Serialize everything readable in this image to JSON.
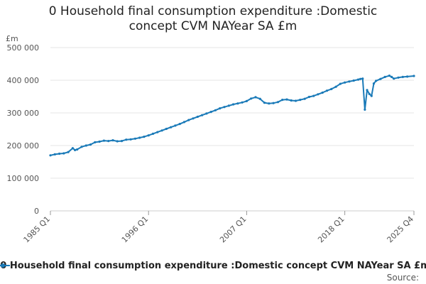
{
  "chart_data": {
    "type": "line",
    "title_line1": "0 Household final consumption expenditure :Domestic",
    "title_line2": "concept CVM NAYear SA £m",
    "ylabel": "£m",
    "ylim": [
      0,
      500000
    ],
    "y_ticks": [
      {
        "value": 0,
        "label": "0"
      },
      {
        "value": 100000,
        "label": "100 000"
      },
      {
        "value": 200000,
        "label": "200 000"
      },
      {
        "value": 300000,
        "label": "300 000"
      },
      {
        "value": 400000,
        "label": "400 000"
      },
      {
        "value": 500000,
        "label": "500 000"
      }
    ],
    "x_range": [
      1985.0,
      2025.75
    ],
    "x_ticks": [
      {
        "value": 1985.0,
        "label": "1985 Q1"
      },
      {
        "value": 1996.0,
        "label": "1996 Q1"
      },
      {
        "value": 2007.0,
        "label": "2007 Q1"
      },
      {
        "value": 2018.0,
        "label": "2018 Q1"
      },
      {
        "value": 2025.75,
        "label": "2025 Q4"
      }
    ],
    "grid": true,
    "legend_position": "bottom",
    "series": [
      {
        "name": "0 Household final consumption expenditure :Domestic concept CVM NAYear SA £m",
        "color": "#1a7ab8",
        "points": [
          [
            1985.0,
            170000
          ],
          [
            1985.5,
            173000
          ],
          [
            1986.0,
            175000
          ],
          [
            1986.5,
            176000
          ],
          [
            1987.0,
            180000
          ],
          [
            1987.5,
            192000
          ],
          [
            1987.75,
            186000
          ],
          [
            1988.0,
            188000
          ],
          [
            1988.5,
            196000
          ],
          [
            1989.0,
            200000
          ],
          [
            1989.5,
            203000
          ],
          [
            1990.0,
            210000
          ],
          [
            1990.5,
            212000
          ],
          [
            1991.0,
            215000
          ],
          [
            1991.5,
            214000
          ],
          [
            1992.0,
            216000
          ],
          [
            1992.5,
            213000
          ],
          [
            1993.0,
            214000
          ],
          [
            1993.5,
            218000
          ],
          [
            1994.0,
            219000
          ],
          [
            1994.5,
            221000
          ],
          [
            1995.0,
            224000
          ],
          [
            1995.5,
            227000
          ],
          [
            1996.0,
            231000
          ],
          [
            1996.5,
            236000
          ],
          [
            1997.0,
            241000
          ],
          [
            1997.5,
            246000
          ],
          [
            1998.0,
            251000
          ],
          [
            1998.5,
            256000
          ],
          [
            1999.0,
            261000
          ],
          [
            1999.5,
            266000
          ],
          [
            2000.0,
            272000
          ],
          [
            2000.5,
            278000
          ],
          [
            2001.0,
            283000
          ],
          [
            2001.5,
            288000
          ],
          [
            2002.0,
            293000
          ],
          [
            2002.5,
            298000
          ],
          [
            2003.0,
            303000
          ],
          [
            2003.5,
            308000
          ],
          [
            2004.0,
            314000
          ],
          [
            2004.5,
            318000
          ],
          [
            2005.0,
            322000
          ],
          [
            2005.5,
            326000
          ],
          [
            2006.0,
            329000
          ],
          [
            2006.5,
            332000
          ],
          [
            2007.0,
            336000
          ],
          [
            2007.5,
            344000
          ],
          [
            2008.0,
            348000
          ],
          [
            2008.5,
            343000
          ],
          [
            2009.0,
            331000
          ],
          [
            2009.5,
            329000
          ],
          [
            2010.0,
            330000
          ],
          [
            2010.5,
            333000
          ],
          [
            2011.0,
            340000
          ],
          [
            2011.5,
            341000
          ],
          [
            2012.0,
            338000
          ],
          [
            2012.5,
            337000
          ],
          [
            2013.0,
            340000
          ],
          [
            2013.5,
            343000
          ],
          [
            2014.0,
            349000
          ],
          [
            2014.5,
            352000
          ],
          [
            2015.0,
            357000
          ],
          [
            2015.5,
            362000
          ],
          [
            2016.0,
            368000
          ],
          [
            2016.5,
            373000
          ],
          [
            2017.0,
            380000
          ],
          [
            2017.5,
            389000
          ],
          [
            2018.0,
            393000
          ],
          [
            2018.5,
            396000
          ],
          [
            2019.0,
            399000
          ],
          [
            2019.5,
            402000
          ],
          [
            2019.75,
            404000
          ],
          [
            2020.0,
            405000
          ],
          [
            2020.25,
            310000
          ],
          [
            2020.5,
            370000
          ],
          [
            2020.75,
            358000
          ],
          [
            2021.0,
            352000
          ],
          [
            2021.25,
            390000
          ],
          [
            2021.5,
            398000
          ],
          [
            2022.0,
            404000
          ],
          [
            2022.5,
            410000
          ],
          [
            2023.0,
            414000
          ],
          [
            2023.25,
            410000
          ],
          [
            2023.5,
            405000
          ],
          [
            2024.0,
            408000
          ],
          [
            2024.5,
            410000
          ],
          [
            2025.0,
            411000
          ],
          [
            2025.75,
            413000
          ]
        ]
      }
    ],
    "source_label": "Source:"
  }
}
